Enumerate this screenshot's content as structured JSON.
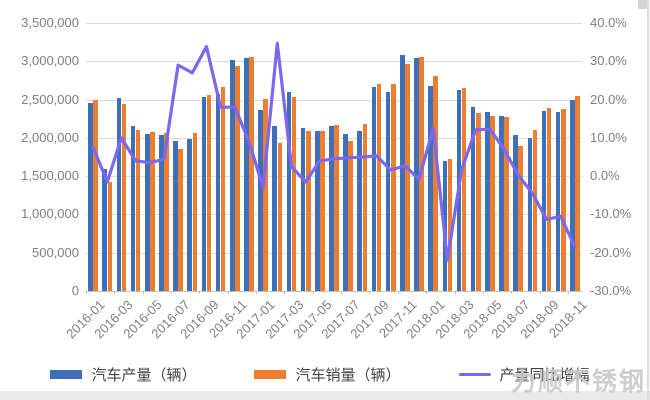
{
  "watermark": "力顺不锈钢",
  "colors": {
    "production_bar": "#3e6fb9",
    "sales_bar": "#ed7d31",
    "yoy_line": "#7b68ee",
    "gridline": "#dcdcdc",
    "axis_text": "#7f7f7f"
  },
  "legend": {
    "items": [
      {
        "label": "汽车产量（辆）",
        "swatch": "bar",
        "color": "#3e6fb9"
      },
      {
        "label": "汽车销量（辆）",
        "swatch": "bar",
        "color": "#ed7d31"
      },
      {
        "label": "产量同比增幅",
        "swatch": "line",
        "color": "#7b68ee"
      }
    ]
  },
  "chart_data": {
    "type": "combo-bar-line",
    "grid": true,
    "legend_position": "bottom",
    "categories": [
      "2016-01",
      "2016-02",
      "2016-03",
      "2016-04",
      "2016-05",
      "2016-06",
      "2016-07",
      "2016-08",
      "2016-09",
      "2016-10",
      "2016-11",
      "2016-12",
      "2017-01",
      "2017-02",
      "2017-03",
      "2017-04",
      "2017-05",
      "2017-06",
      "2017-07",
      "2017-08",
      "2017-09",
      "2017-10",
      "2017-11",
      "2017-12",
      "2018-01",
      "2018-02",
      "2018-03",
      "2018-04",
      "2018-05",
      "2018-06",
      "2018-07",
      "2018-08",
      "2018-09",
      "2018-10",
      "2018-11"
    ],
    "x_tick_labels": [
      "2016-01",
      "2016-03",
      "2016-05",
      "2016-07",
      "2016-09",
      "2016-11",
      "2017-01",
      "2017-03",
      "2017-05",
      "2017-07",
      "2017-09",
      "2017-11",
      "2018-01",
      "2018-03",
      "2018-05",
      "2018-07",
      "2018-09",
      "2018-11"
    ],
    "series": [
      {
        "name": "汽车产量（辆）",
        "type": "bar",
        "axis": "left",
        "values": [
          2460000,
          1600000,
          2520000,
          2160000,
          2050000,
          2040000,
          1960000,
          1980000,
          2530000,
          2570000,
          3020000,
          3050000,
          2370000,
          2150000,
          2600000,
          2130000,
          2090000,
          2160000,
          2050000,
          2090000,
          2670000,
          2600000,
          3080000,
          3040000,
          2680000,
          1700000,
          2620000,
          2400000,
          2340000,
          2290000,
          2040000,
          2000000,
          2350000,
          2340000,
          2490000
        ]
      },
      {
        "name": "汽车销量（辆）",
        "type": "bar",
        "axis": "left",
        "values": [
          2500000,
          1430000,
          2440000,
          2100000,
          2080000,
          2070000,
          1860000,
          2060000,
          2560000,
          2660000,
          2940000,
          3060000,
          2510000,
          1930000,
          2540000,
          2090000,
          2090000,
          2170000,
          1960000,
          2180000,
          2710000,
          2700000,
          2960000,
          3060000,
          2810000,
          1720000,
          2650000,
          2320000,
          2290000,
          2270000,
          1890000,
          2100000,
          2390000,
          2380000,
          2550000
        ]
      },
      {
        "name": "产量同比增幅",
        "type": "line",
        "axis": "right",
        "values_pct": [
          7.5,
          -1.5,
          10.0,
          4.0,
          3.5,
          4.4,
          29.0,
          27.0,
          33.8,
          18.0,
          18.0,
          9.0,
          -3.0,
          34.7,
          2.5,
          -1.5,
          4.0,
          4.5,
          4.8,
          5.0,
          5.3,
          1.6,
          2.7,
          -0.8,
          12.5,
          -21.9,
          1.5,
          12.1,
          12.3,
          7.0,
          0.3,
          -4.5,
          -11.3,
          -10.5,
          -18.5
        ]
      }
    ],
    "left_axis": {
      "min": 0,
      "max": 3500000,
      "step": 500000,
      "tick_labels": [
        "3,500,000",
        "3,000,000",
        "2,500,000",
        "2,000,000",
        "1,500,000",
        "1,000,000",
        "500,000",
        "0"
      ]
    },
    "right_axis": {
      "min": -30,
      "max": 40,
      "step": 10,
      "tick_labels": [
        "40.0%",
        "30.0%",
        "20.0%",
        "10.0%",
        "0.0%",
        "-10.0%",
        "-20.0%",
        "-30.0%"
      ]
    }
  }
}
